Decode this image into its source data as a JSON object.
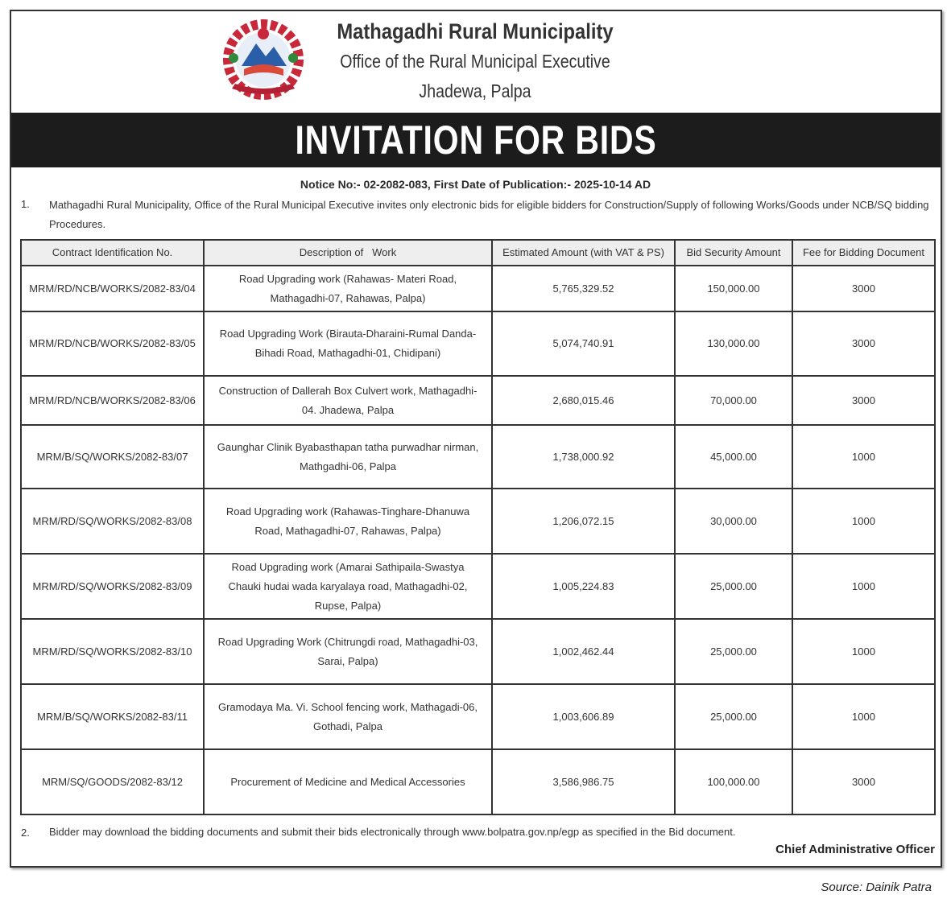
{
  "header": {
    "municipality": "Mathagadhi Rural Municipality",
    "office": "Office of the Rural Municipal Executive",
    "location": "Jhadewa, Palpa",
    "logo_icon": "nepal-emblem-logo"
  },
  "banner": "INVITATION FOR BIDS",
  "notice_line": "Notice No:- 02-2082-083, First Date of Publication:- 2025-10-14 AD",
  "paragraphs": [
    {
      "number": "1.",
      "text": "Mathagadhi Rural Municipality, Office of the Rural Municipal Executive invites only electronic bids for eligible bidders for Construction/Supply of following Works/Goods under NCB/SQ bidding Procedures."
    },
    {
      "number": "2.",
      "text": "Bidder may download the bidding documents and submit their bids electronically through www.bolpatra.gov.np/egp as specified in the Bid document."
    }
  ],
  "table": {
    "columns": [
      "Contract Identification No.",
      "Description of   Work",
      "Estimated Amount (with VAT & PS)",
      "Bid Security Amount",
      "Fee for Bidding Document"
    ],
    "rows": [
      [
        "MRM/RD/NCB/WORKS/2082-83/04",
        "Road Upgrading work (Rahawas- Materi Road, Mathagadhi-07, Rahawas, Palpa)",
        "5,765,329.52",
        "150,000.00",
        "3000"
      ],
      [
        "MRM/RD/NCB/WORKS/2082-83/05",
        "Road Upgrading Work (Birauta-Dharaini-Rumal Danda-Bihadi Road, Mathagadhi-01, Chidipani)",
        "5,074,740.91",
        "130,000.00",
        "3000"
      ],
      [
        "MRM/RD/NCB/WORKS/2082-83/06",
        "Construction of Dallerah Box Culvert work, Mathagadhi-04. Jhadewa, Palpa",
        "2,680,015.46",
        "70,000.00",
        "3000"
      ],
      [
        "MRM/B/SQ/WORKS/2082-83/07",
        "Gaunghar Clinik Byabasthapan tatha purwadhar nirman, Mathgadhi-06, Palpa",
        "1,738,000.92",
        "45,000.00",
        "1000"
      ],
      [
        "MRM/RD/SQ/WORKS/2082-83/08",
        "Road Upgrading work (Rahawas-Tinghare-Dhanuwa Road, Mathagadhi-07, Rahawas, Palpa)",
        "1,206,072.15",
        "30,000.00",
        "1000"
      ],
      [
        "MRM/RD/SQ/WORKS/2082-83/09",
        "Road Upgrading work (Amarai Sathipaila-Swastya Chauki hudai wada karyalaya road, Mathagadhi-02, Rupse, Palpa)",
        "1,005,224.83",
        "25,000.00",
        "1000"
      ],
      [
        "MRM/RD/SQ/WORKS/2082-83/10",
        "Road Upgrading Work (Chitrungdi road, Mathagadhi-03, Sarai, Palpa)",
        "1,002,462.44",
        "25,000.00",
        "1000"
      ],
      [
        "MRM/B/SQ/WORKS/2082-83/11",
        "Gramodaya Ma. Vi. School fencing work, Mathagadi-06, Gothadi, Palpa",
        "1,003,606.89",
        "25,000.00",
        "1000"
      ],
      [
        "MRM/SQ/GOODS/2082-83/12",
        "Procurement of Medicine and Medical Accessories",
        "3,586,986.75",
        "100,000.00",
        "3000"
      ]
    ]
  },
  "signature": "Chief Administrative Officer",
  "source": "Source: Dainik Patra"
}
